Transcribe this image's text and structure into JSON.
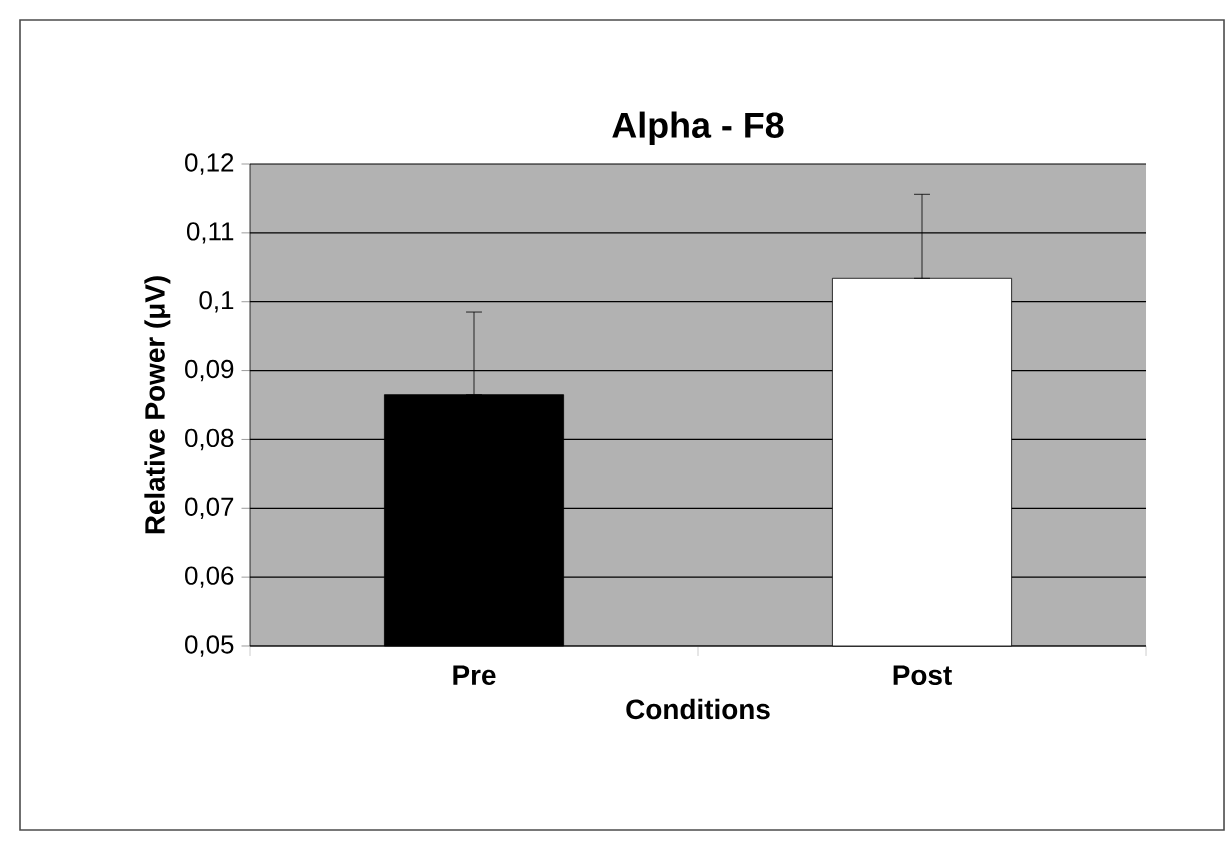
{
  "chart_data": {
    "type": "bar",
    "title": "Alpha - F8",
    "xlabel": "Conditions",
    "ylabel": "Relative Power (μV)",
    "categories": [
      "Pre",
      "Post"
    ],
    "values": [
      0.0865,
      0.1034
    ],
    "colors": [
      "#000000",
      "#ffffff"
    ],
    "errors": [
      [
        0.0865,
        0.0985
      ],
      [
        0.1034,
        0.1156
      ]
    ],
    "ylim": [
      0.05,
      0.12
    ],
    "yticks": [
      {
        "value": 0.05,
        "label": "0,05"
      },
      {
        "value": 0.06,
        "label": "0,06"
      },
      {
        "value": 0.07,
        "label": "0,07"
      },
      {
        "value": 0.08,
        "label": "0,08"
      },
      {
        "value": 0.09,
        "label": "0,09"
      },
      {
        "value": 0.1,
        "label": "0,1"
      },
      {
        "value": 0.11,
        "label": "0,11"
      },
      {
        "value": 0.12,
        "label": "0,12"
      }
    ],
    "grid": "y"
  }
}
